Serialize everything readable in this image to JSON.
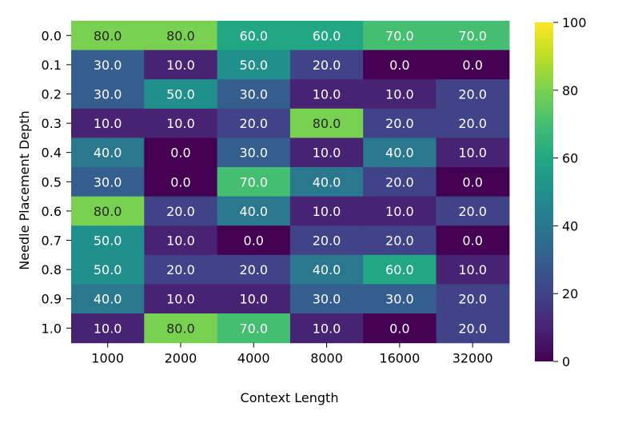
{
  "chart_data": {
    "type": "heatmap",
    "title": "",
    "xlabel": "Context Length",
    "ylabel": "Needle Placement Depth",
    "x_categories": [
      "1000",
      "2000",
      "4000",
      "8000",
      "16000",
      "32000"
    ],
    "y_categories": [
      "0.0",
      "0.1",
      "0.2",
      "0.3",
      "0.4",
      "0.5",
      "0.6",
      "0.7",
      "0.8",
      "0.9",
      "1.0"
    ],
    "values": [
      [
        80.0,
        80.0,
        60.0,
        60.0,
        70.0,
        70.0
      ],
      [
        30.0,
        10.0,
        50.0,
        20.0,
        0.0,
        0.0
      ],
      [
        30.0,
        50.0,
        30.0,
        10.0,
        10.0,
        20.0
      ],
      [
        10.0,
        10.0,
        20.0,
        80.0,
        20.0,
        20.0
      ],
      [
        40.0,
        0.0,
        30.0,
        10.0,
        40.0,
        10.0
      ],
      [
        30.0,
        0.0,
        70.0,
        40.0,
        20.0,
        0.0
      ],
      [
        80.0,
        20.0,
        40.0,
        10.0,
        10.0,
        20.0
      ],
      [
        50.0,
        10.0,
        0.0,
        20.0,
        20.0,
        0.0
      ],
      [
        50.0,
        20.0,
        20.0,
        40.0,
        60.0,
        10.0
      ],
      [
        40.0,
        10.0,
        10.0,
        30.0,
        30.0,
        20.0
      ],
      [
        10.0,
        80.0,
        70.0,
        10.0,
        0.0,
        20.0
      ]
    ],
    "value_labels": [
      [
        "80.0",
        "80.0",
        "60.0",
        "60.0",
        "70.0",
        "70.0"
      ],
      [
        "30.0",
        "10.0",
        "50.0",
        "20.0",
        "0.0",
        "0.0"
      ],
      [
        "30.0",
        "50.0",
        "30.0",
        "10.0",
        "10.0",
        "20.0"
      ],
      [
        "10.0",
        "10.0",
        "20.0",
        "80.0",
        "20.0",
        "20.0"
      ],
      [
        "40.0",
        "0.0",
        "30.0",
        "10.0",
        "40.0",
        "10.0"
      ],
      [
        "30.0",
        "0.0",
        "70.0",
        "40.0",
        "20.0",
        "0.0"
      ],
      [
        "80.0",
        "20.0",
        "40.0",
        "10.0",
        "10.0",
        "20.0"
      ],
      [
        "50.0",
        "10.0",
        "0.0",
        "20.0",
        "20.0",
        "0.0"
      ],
      [
        "50.0",
        "20.0",
        "20.0",
        "40.0",
        "60.0",
        "10.0"
      ],
      [
        "40.0",
        "10.0",
        "10.0",
        "30.0",
        "30.0",
        "20.0"
      ],
      [
        "10.0",
        "80.0",
        "70.0",
        "10.0",
        "0.0",
        "20.0"
      ]
    ],
    "colormap": "viridis",
    "vmin": 0,
    "vmax": 100,
    "colorbar_ticks": [
      "0",
      "20",
      "40",
      "60",
      "80",
      "100"
    ],
    "colorbar_tick_values": [
      0,
      20,
      40,
      60,
      80,
      100
    ]
  }
}
